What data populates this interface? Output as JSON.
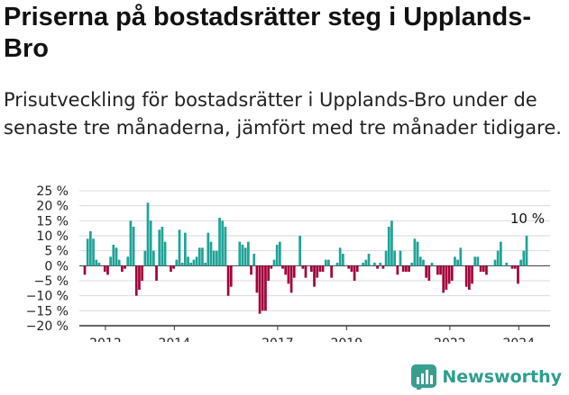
{
  "title": "Priserna på bostadsrätter steg i Upplands-Bro",
  "subtitle": "Prisutveckling för bostadsrätter i Upplands-Bro under de senaste tre månaderna, jämfört med tre månader tidigare.",
  "brand": {
    "name": "Newsworthy",
    "icon": "newsworthy-logo-icon"
  },
  "colors": {
    "positive": "#1fa398",
    "negative": "#a3003a",
    "axis": "#333333",
    "grid": "#d9d9d9"
  },
  "chart_data": {
    "type": "bar",
    "title": "Priserna på bostadsrätter steg i Upplands-Bro",
    "ylim": [
      -20,
      25
    ],
    "y_ticks": [
      -20,
      -15,
      -10,
      -5,
      0,
      5,
      10,
      15,
      20,
      25
    ],
    "y_tick_labels": [
      "−20 %",
      "−15 %",
      "−10 %",
      "−5 %",
      "0 %",
      "5 %",
      "10 %",
      "15 %",
      "20 %",
      "25 %"
    ],
    "x_tick_labels": [
      "2012",
      "2014",
      "2017",
      "2019",
      "2022",
      "2024"
    ],
    "x_tick_years": [
      2012,
      2014,
      2017,
      2019,
      2022,
      2024
    ],
    "x_start": 2011.4,
    "x_step": 0.0833,
    "annotation": "10 %",
    "values": [
      -3,
      9,
      11.5,
      9,
      2,
      1,
      0,
      -2,
      -3,
      3,
      7,
      6,
      2,
      -2,
      -1,
      3,
      15,
      13,
      -10,
      -8,
      -5,
      5,
      21,
      15,
      5,
      -5,
      12,
      13,
      8,
      0,
      -2,
      -1,
      2,
      12,
      1,
      11,
      3,
      1,
      2,
      3,
      6,
      6,
      1,
      11,
      8,
      5,
      5,
      16,
      15,
      13,
      -10,
      -7,
      0,
      0,
      8,
      7,
      6,
      8,
      -3,
      4,
      -9,
      -16,
      -15,
      -15,
      -5,
      -1,
      2,
      7,
      8,
      -1,
      -3,
      -6,
      -9,
      -4,
      0,
      10,
      -1,
      -4,
      0,
      -2,
      -7,
      -4,
      -2,
      -2,
      2,
      2,
      -4,
      0,
      1,
      6,
      4,
      0,
      -1,
      -2,
      -5,
      -2,
      0,
      1,
      2,
      4,
      0,
      1,
      -1,
      1,
      -1,
      5,
      13,
      15,
      5,
      -3,
      5,
      -2,
      -2,
      -2,
      1,
      9,
      8,
      3,
      2,
      -4,
      -5,
      1,
      0,
      -3,
      -3,
      -9,
      -8,
      -6,
      -5,
      3,
      2,
      6,
      0,
      -7,
      -8,
      -6,
      3,
      3,
      -2,
      -2,
      -3,
      0,
      0,
      2,
      5,
      8,
      0,
      1,
      0,
      -1,
      -1,
      -6,
      2,
      5,
      10
    ]
  }
}
